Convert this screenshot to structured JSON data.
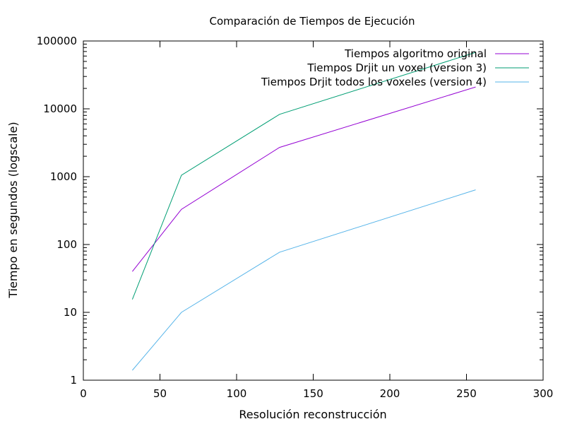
{
  "chart_data": {
    "type": "line",
    "title": "Comparación de Tiempos de Ejecución",
    "xlabel": "Resolución reconstrucción",
    "ylabel": "Tiempo en segundos (logscale)",
    "xlim": [
      0,
      300
    ],
    "ylim": [
      1,
      100000
    ],
    "yscale": "log",
    "grid": false,
    "legend_position": "top-right",
    "x_ticks": [
      0,
      50,
      100,
      150,
      200,
      250,
      300
    ],
    "x_tick_labels": [
      "0",
      "50",
      "100",
      "150",
      "200",
      "250",
      "300"
    ],
    "y_ticks": [
      1,
      10,
      100,
      1000,
      10000,
      100000
    ],
    "y_tick_labels": [
      "1",
      "10",
      "100",
      "1000",
      "10000",
      "100000"
    ],
    "series": [
      {
        "name": "Tiempos algoritmo original",
        "color": "#9400d3",
        "x": [
          32,
          64,
          128,
          256
        ],
        "y": [
          40,
          330,
          2700,
          21000
        ]
      },
      {
        "name": "Tiempos Drjit un voxel (version 3)",
        "color": "#009e73",
        "x": [
          32,
          64,
          128,
          256
        ],
        "y": [
          15.5,
          1050,
          8300,
          68000
        ]
      },
      {
        "name": "Tiempos Drjit todos los voxeles (version 4)",
        "color": "#56b4e9",
        "x": [
          32,
          64,
          128,
          256
        ],
        "y": [
          1.4,
          10,
          77,
          640
        ]
      }
    ]
  }
}
